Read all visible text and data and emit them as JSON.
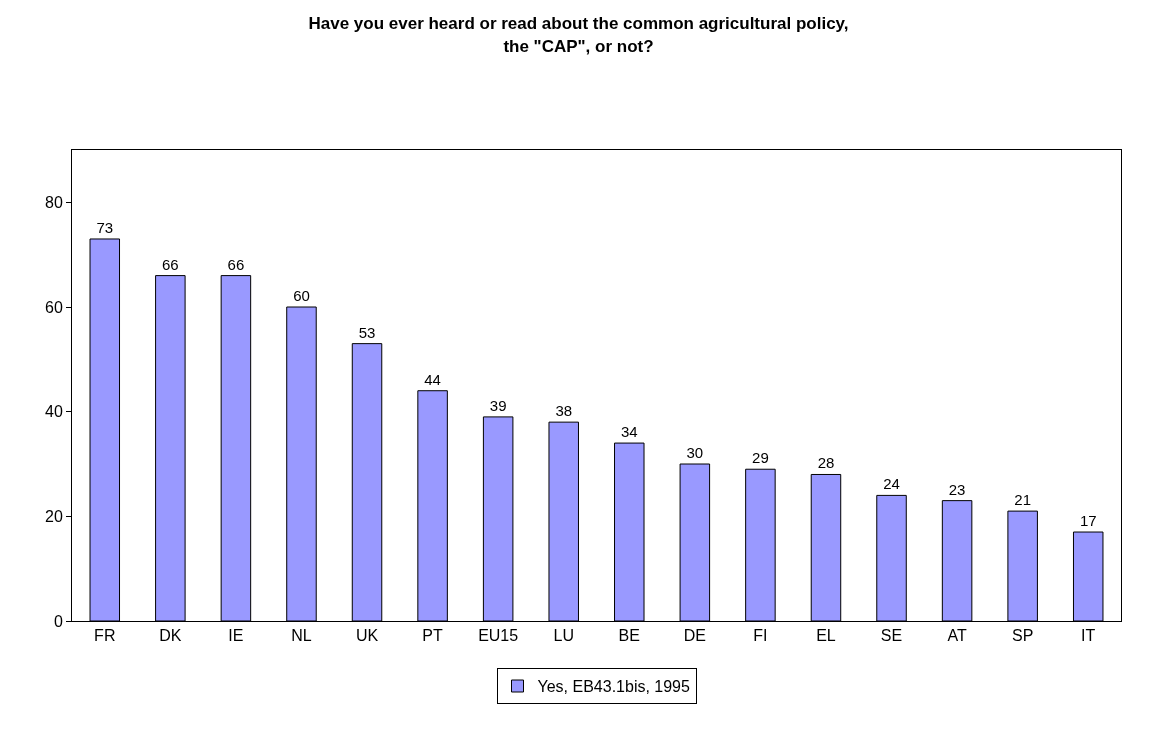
{
  "chart_data": {
    "type": "bar",
    "title": "Have you ever heard or read about the common agricultural policy,\nthe \"CAP\", or not?",
    "categories": [
      "FR",
      "DK",
      "IE",
      "NL",
      "UK",
      "PT",
      "EU15",
      "LU",
      "BE",
      "DE",
      "FI",
      "EL",
      "SE",
      "AT",
      "SP",
      "IT"
    ],
    "series": [
      {
        "name": "Yes, EB43.1bis, 1995",
        "color": "#9999ff",
        "values": [
          73,
          66,
          66,
          60,
          53,
          44,
          39,
          38,
          34,
          30,
          29,
          28,
          24,
          23,
          21,
          17
        ]
      }
    ],
    "ylim": [
      0,
      90
    ],
    "yticks": [
      0,
      20,
      40,
      60,
      80
    ],
    "grid": false,
    "legend": "bottom",
    "data_labels": true
  }
}
